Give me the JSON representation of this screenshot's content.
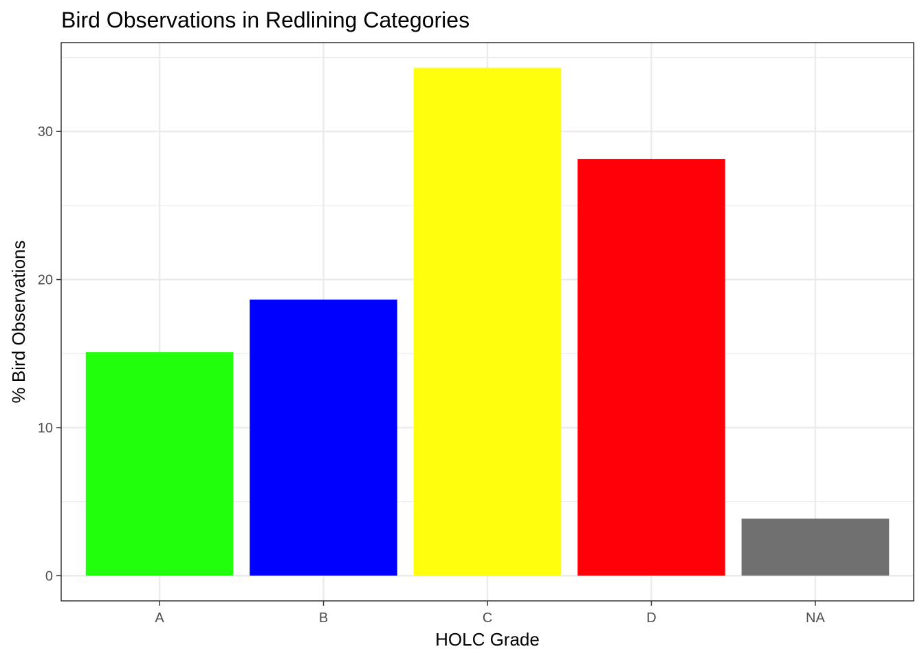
{
  "chart_data": {
    "type": "bar",
    "title": "Bird Observations in Redlining Categories",
    "xlabel": "HOLC Grade",
    "ylabel": "% Bird Observations",
    "categories": [
      "A",
      "B",
      "C",
      "D",
      "NA"
    ],
    "values": [
      15.1,
      18.65,
      34.3,
      28.15,
      3.85
    ],
    "colors": [
      "#22ff0d",
      "#0000ff",
      "#ffff0d",
      "#ff0008",
      "#707070"
    ],
    "ylim": [
      -1.7,
      36.0
    ],
    "yticks": [
      0,
      10,
      20,
      30
    ],
    "ytick_labels": [
      "0",
      "10",
      "20",
      "30"
    ],
    "grid": true,
    "legend": "none",
    "background": "#ffffff",
    "grid_color": "#ebebeb",
    "border_color": "#333333"
  }
}
